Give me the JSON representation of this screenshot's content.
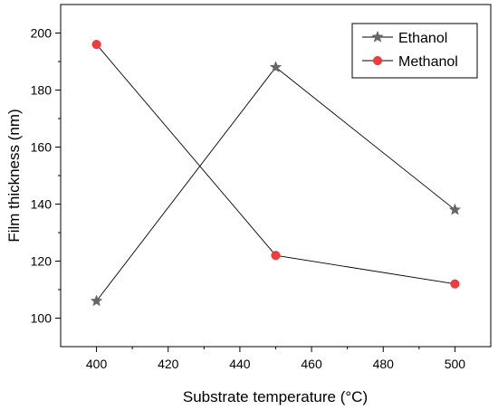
{
  "chart_data": {
    "type": "line",
    "xlabel": "Substrate temperature (°C)",
    "ylabel": "Film thickness (nm)",
    "xlim": [
      390,
      510
    ],
    "ylim": [
      90,
      210
    ],
    "xticks": [
      400,
      420,
      440,
      460,
      480,
      500
    ],
    "yticks": [
      100,
      120,
      140,
      160,
      180,
      200
    ],
    "grid": false,
    "legend_position": "top-right",
    "series": [
      {
        "name": "Ethanol",
        "marker": "star",
        "color": "#666666",
        "x": [
          400,
          450,
          500
        ],
        "y": [
          106,
          188,
          138
        ]
      },
      {
        "name": "Methanol",
        "marker": "circle",
        "color": "#f03c3c",
        "x": [
          400,
          450,
          500
        ],
        "y": [
          196,
          122,
          112
        ]
      }
    ]
  }
}
